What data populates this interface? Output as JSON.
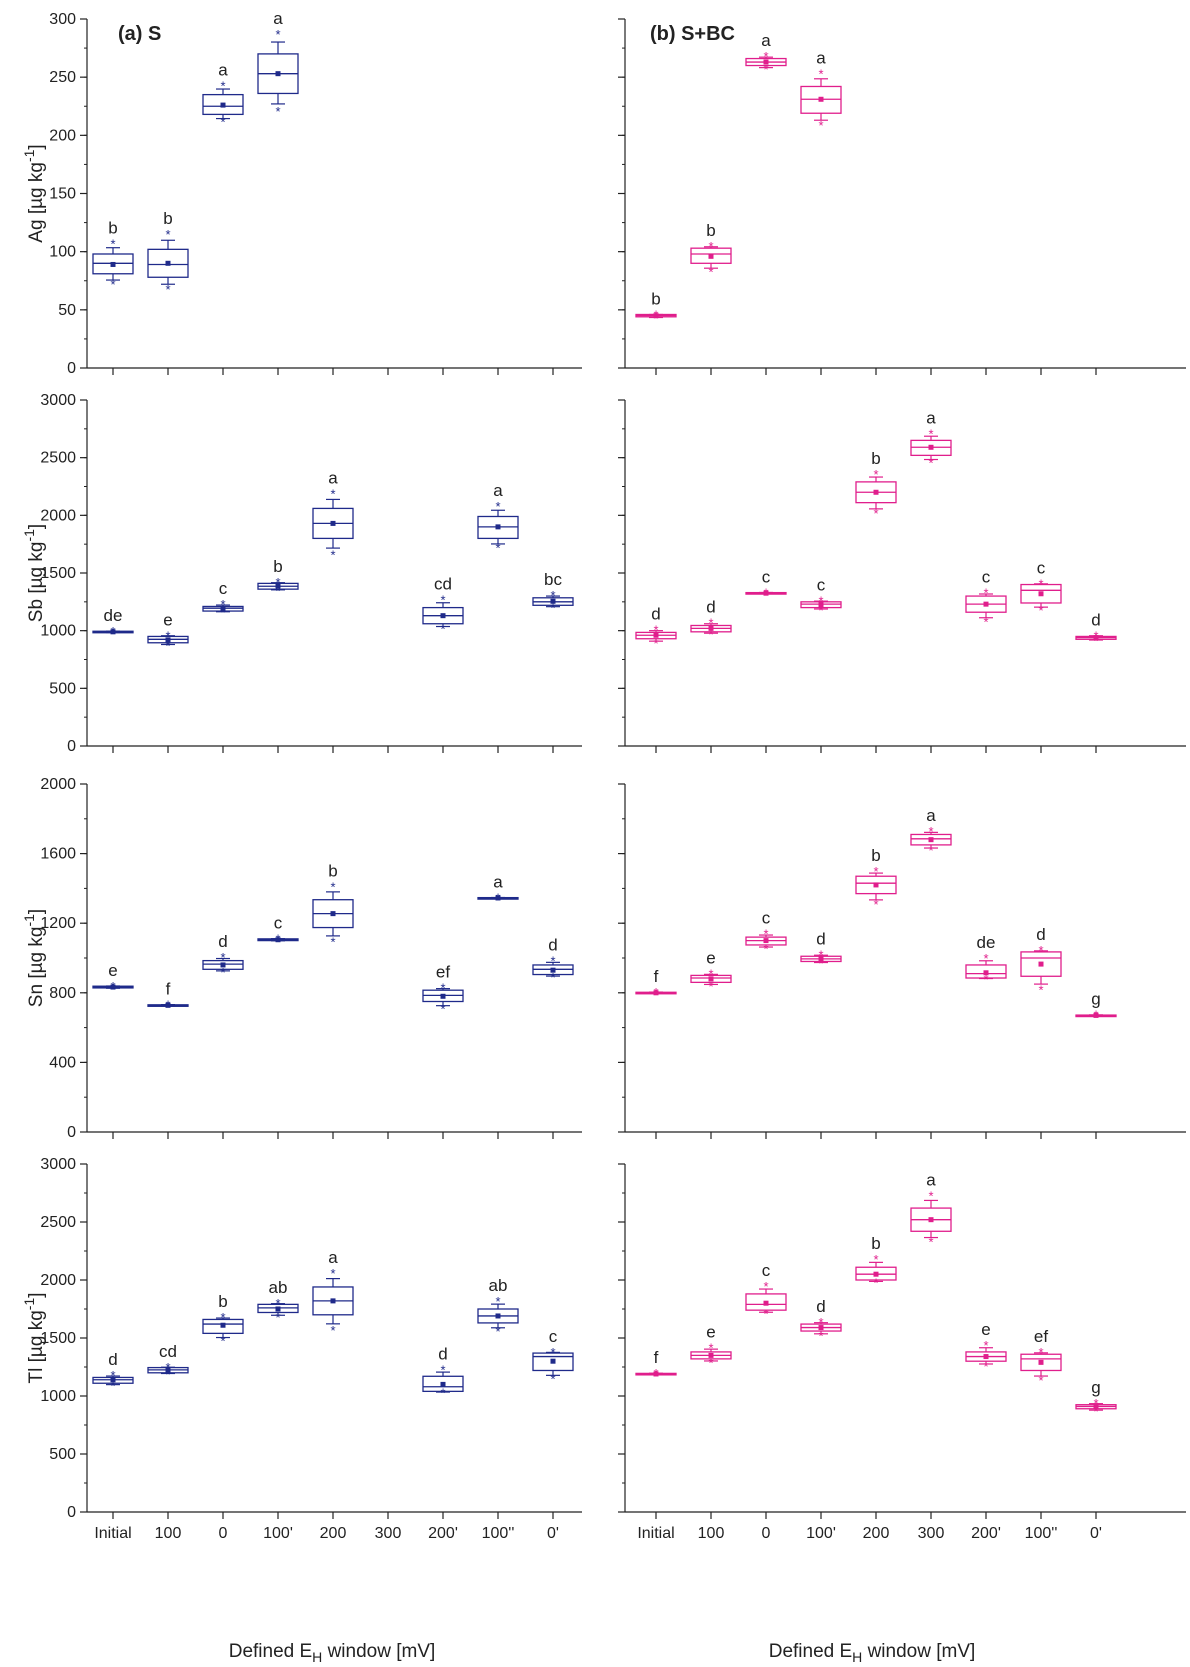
{
  "colors": {
    "series_S": "#1f2a8a",
    "series_SBC": "#e01e8c",
    "axis": "#222222"
  },
  "panel_titles": [
    "(a) S",
    "(b) S+BC"
  ],
  "x_axis_title": {
    "main": "Defined E",
    "sub": "H",
    "tail": " window [mV]"
  },
  "chart_data": [
    {
      "type": "box",
      "panel": "(a) S",
      "ylabel": {
        "element": "Ag",
        "unit": "[µg kg",
        "exp": "-1",
        "close": "]"
      },
      "ylim": [
        0,
        300
      ],
      "ymajor": [
        0,
        50,
        100,
        150,
        200,
        250,
        300
      ],
      "yminor_step": 25,
      "categories": [
        "Initial",
        "100",
        "0",
        "100'",
        "200",
        "300",
        "200'",
        "100''",
        "0'"
      ],
      "boxes": [
        {
          "x": "Initial",
          "q1": 81,
          "median": 90,
          "q3": 98,
          "mean": 89,
          "min": 72,
          "max": 107,
          "letter": "b"
        },
        {
          "x": "100",
          "q1": 78,
          "median": 89,
          "q3": 102,
          "mean": 90,
          "min": 68,
          "max": 115,
          "letter": "b"
        },
        {
          "x": "0",
          "q1": 218,
          "median": 225,
          "q3": 235,
          "mean": 226,
          "min": 212,
          "max": 243,
          "letter": "a"
        },
        {
          "x": "100'",
          "q1": 236,
          "median": 253,
          "q3": 270,
          "mean": 253,
          "min": 221,
          "max": 287,
          "letter": "a"
        }
      ]
    },
    {
      "type": "box",
      "panel": "(b) S+BC",
      "ylabel": {
        "element": "",
        "unit": "",
        "exp": "",
        "close": ""
      },
      "ylim": [
        0,
        300
      ],
      "ymajor": [
        0,
        50,
        100,
        150,
        200,
        250,
        300
      ],
      "yminor_step": 25,
      "categories": [
        "Initial",
        "100",
        "0",
        "100'",
        "200",
        "300",
        "200'",
        "100''",
        "0'"
      ],
      "boxes": [
        {
          "x": "Initial",
          "q1": 44,
          "median": 45,
          "q3": 46,
          "mean": 45,
          "min": 43,
          "max": 46,
          "letter": "b"
        },
        {
          "x": "100",
          "q1": 90,
          "median": 98,
          "q3": 103,
          "mean": 96,
          "min": 83,
          "max": 105,
          "letter": "b"
        },
        {
          "x": "0",
          "q1": 260,
          "median": 263,
          "q3": 266,
          "mean": 263,
          "min": 257,
          "max": 268,
          "letter": "a"
        },
        {
          "x": "100'",
          "q1": 219,
          "median": 231,
          "q3": 242,
          "mean": 231,
          "min": 209,
          "max": 253,
          "letter": "a"
        }
      ]
    },
    {
      "type": "box",
      "panel": "(a) S",
      "ylabel": {
        "element": "Sb",
        "unit": "[µg kg",
        "exp": "-1",
        "close": "]"
      },
      "ylim": [
        0,
        3000
      ],
      "ymajor": [
        0,
        500,
        1000,
        1500,
        2000,
        2500,
        3000
      ],
      "yminor_step": 250,
      "categories": [
        "Initial",
        "100",
        "0",
        "100'",
        "200",
        "300",
        "200'",
        "100''",
        "0'"
      ],
      "boxes": [
        {
          "x": "Initial",
          "q1": 985,
          "median": 990,
          "q3": 995,
          "mean": 990,
          "min": 983,
          "max": 997,
          "letter": "de"
        },
        {
          "x": "100",
          "q1": 895,
          "median": 925,
          "q3": 950,
          "mean": 920,
          "min": 870,
          "max": 960,
          "letter": "e"
        },
        {
          "x": "0",
          "q1": 1170,
          "median": 1195,
          "q3": 1210,
          "mean": 1190,
          "min": 1160,
          "max": 1230,
          "letter": "c"
        },
        {
          "x": "100'",
          "q1": 1360,
          "median": 1385,
          "q3": 1410,
          "mean": 1390,
          "min": 1350,
          "max": 1420,
          "letter": "b"
        },
        {
          "x": "200",
          "q1": 1800,
          "median": 1930,
          "q3": 2060,
          "mean": 1930,
          "min": 1660,
          "max": 2190,
          "letter": "a"
        },
        {
          "x": "200'",
          "q1": 1060,
          "median": 1130,
          "q3": 1200,
          "mean": 1130,
          "min": 1020,
          "max": 1270,
          "letter": "cd"
        },
        {
          "x": "100''",
          "q1": 1800,
          "median": 1900,
          "q3": 1990,
          "mean": 1900,
          "min": 1720,
          "max": 2080,
          "letter": "a"
        },
        {
          "x": "0'",
          "q1": 1220,
          "median": 1250,
          "q3": 1285,
          "mean": 1255,
          "min": 1200,
          "max": 1310,
          "letter": "bc"
        }
      ]
    },
    {
      "type": "box",
      "panel": "(b) S+BC",
      "ylabel": {
        "element": "",
        "unit": "",
        "exp": "",
        "close": ""
      },
      "ylim": [
        0,
        3000
      ],
      "ymajor": [
        0,
        500,
        1000,
        1500,
        2000,
        2500,
        3000
      ],
      "yminor_step": 250,
      "categories": [
        "Initial",
        "100",
        "0",
        "100'",
        "200",
        "300",
        "200'",
        "100''",
        "0'"
      ],
      "boxes": [
        {
          "x": "Initial",
          "q1": 930,
          "median": 960,
          "q3": 985,
          "mean": 960,
          "min": 895,
          "max": 1010,
          "letter": "d"
        },
        {
          "x": "100",
          "q1": 990,
          "median": 1020,
          "q3": 1045,
          "mean": 1020,
          "min": 970,
          "max": 1070,
          "letter": "d"
        },
        {
          "x": "0",
          "q1": 1320,
          "median": 1325,
          "q3": 1330,
          "mean": 1325,
          "min": 1318,
          "max": 1332,
          "letter": "c"
        },
        {
          "x": "100'",
          "q1": 1200,
          "median": 1230,
          "q3": 1250,
          "mean": 1225,
          "min": 1180,
          "max": 1260,
          "letter": "c"
        },
        {
          "x": "200",
          "q1": 2110,
          "median": 2200,
          "q3": 2290,
          "mean": 2200,
          "min": 2020,
          "max": 2360,
          "letter": "b"
        },
        {
          "x": "300",
          "q1": 2520,
          "median": 2590,
          "q3": 2650,
          "mean": 2590,
          "min": 2460,
          "max": 2710,
          "letter": "a"
        },
        {
          "x": "200'",
          "q1": 1160,
          "median": 1230,
          "q3": 1300,
          "mean": 1230,
          "min": 1080,
          "max": 1330,
          "letter": "c"
        },
        {
          "x": "100''",
          "q1": 1240,
          "median": 1350,
          "q3": 1400,
          "mean": 1320,
          "min": 1180,
          "max": 1410,
          "letter": "c"
        },
        {
          "x": "0'",
          "q1": 925,
          "median": 940,
          "q3": 950,
          "mean": 940,
          "min": 915,
          "max": 960,
          "letter": "d"
        }
      ]
    },
    {
      "type": "box",
      "panel": "(a) S",
      "ylabel": {
        "element": "Sn",
        "unit": "[µg kg",
        "exp": "-1",
        "close": "]"
      },
      "ylim": [
        0,
        2000
      ],
      "ymajor": [
        0,
        400,
        800,
        1200,
        1600,
        2000
      ],
      "yminor_step": 200,
      "categories": [
        "Initial",
        "100",
        "0",
        "100'",
        "200",
        "300",
        "200'",
        "100''",
        "0'"
      ],
      "boxes": [
        {
          "x": "Initial",
          "q1": 828,
          "median": 833,
          "q3": 838,
          "mean": 833,
          "min": 825,
          "max": 840,
          "letter": "e"
        },
        {
          "x": "100",
          "q1": 725,
          "median": 728,
          "q3": 731,
          "mean": 728,
          "min": 723,
          "max": 733,
          "letter": "f"
        },
        {
          "x": "0",
          "q1": 935,
          "median": 965,
          "q3": 985,
          "mean": 960,
          "min": 920,
          "max": 1005,
          "letter": "d"
        },
        {
          "x": "100'",
          "q1": 1100,
          "median": 1105,
          "q3": 1110,
          "mean": 1105,
          "min": 1098,
          "max": 1112,
          "letter": "c"
        },
        {
          "x": "200",
          "q1": 1175,
          "median": 1255,
          "q3": 1335,
          "mean": 1255,
          "min": 1095,
          "max": 1410,
          "letter": "b"
        },
        {
          "x": "200'",
          "q1": 750,
          "median": 785,
          "q3": 815,
          "mean": 780,
          "min": 710,
          "max": 830,
          "letter": "ef"
        },
        {
          "x": "100''",
          "q1": 1343,
          "median": 1345,
          "q3": 1347,
          "mean": 1345,
          "min": 1342,
          "max": 1348,
          "letter": "a"
        },
        {
          "x": "0'",
          "q1": 905,
          "median": 935,
          "q3": 960,
          "mean": 930,
          "min": 890,
          "max": 985,
          "letter": "d"
        }
      ]
    },
    {
      "type": "box",
      "panel": "(b) S+BC",
      "ylabel": {
        "element": "",
        "unit": "",
        "exp": "",
        "close": ""
      },
      "ylim": [
        0,
        2000
      ],
      "ymajor": [
        0,
        400,
        800,
        1200,
        1600,
        2000
      ],
      "yminor_step": 200,
      "categories": [
        "Initial",
        "100",
        "0",
        "100'",
        "200",
        "300",
        "200'",
        "100''",
        "0'"
      ],
      "boxes": [
        {
          "x": "Initial",
          "q1": 798,
          "median": 800,
          "q3": 803,
          "mean": 800,
          "min": 796,
          "max": 805,
          "letter": "f"
        },
        {
          "x": "100",
          "q1": 860,
          "median": 885,
          "q3": 900,
          "mean": 880,
          "min": 840,
          "max": 910,
          "letter": "e"
        },
        {
          "x": "0",
          "q1": 1075,
          "median": 1100,
          "q3": 1120,
          "mean": 1100,
          "min": 1055,
          "max": 1140,
          "letter": "c"
        },
        {
          "x": "100'",
          "q1": 980,
          "median": 995,
          "q3": 1010,
          "mean": 995,
          "min": 970,
          "max": 1020,
          "letter": "d"
        },
        {
          "x": "200",
          "q1": 1370,
          "median": 1430,
          "q3": 1470,
          "mean": 1420,
          "min": 1310,
          "max": 1500,
          "letter": "b"
        },
        {
          "x": "300",
          "q1": 1650,
          "median": 1685,
          "q3": 1710,
          "mean": 1680,
          "min": 1620,
          "max": 1730,
          "letter": "a"
        },
        {
          "x": "200'",
          "q1": 885,
          "median": 910,
          "q3": 960,
          "mean": 915,
          "min": 880,
          "max": 1000,
          "letter": "de"
        },
        {
          "x": "100''",
          "q1": 895,
          "median": 1000,
          "q3": 1035,
          "mean": 965,
          "min": 820,
          "max": 1045,
          "letter": "d"
        },
        {
          "x": "0'",
          "q1": 668,
          "median": 670,
          "q3": 672,
          "mean": 670,
          "min": 666,
          "max": 674,
          "letter": "g"
        }
      ]
    },
    {
      "type": "box",
      "panel": "(a) S",
      "ylabel": {
        "element": "Tl",
        "unit": "[µg kg",
        "exp": "-1",
        "close": "]"
      },
      "ylim": [
        0,
        3000
      ],
      "ymajor": [
        0,
        500,
        1000,
        1500,
        2000,
        2500,
        3000
      ],
      "yminor_step": 250,
      "categories": [
        "Initial",
        "100",
        "0",
        "100'",
        "200",
        "300",
        "200'",
        "100''",
        "0'"
      ],
      "boxes": [
        {
          "x": "Initial",
          "q1": 1110,
          "median": 1140,
          "q3": 1160,
          "mean": 1140,
          "min": 1090,
          "max": 1180,
          "letter": "d"
        },
        {
          "x": "100",
          "q1": 1200,
          "median": 1225,
          "q3": 1245,
          "mean": 1220,
          "min": 1190,
          "max": 1250,
          "letter": "cd"
        },
        {
          "x": "0",
          "q1": 1540,
          "median": 1620,
          "q3": 1660,
          "mean": 1610,
          "min": 1480,
          "max": 1680,
          "letter": "b"
        },
        {
          "x": "100'",
          "q1": 1720,
          "median": 1760,
          "q3": 1790,
          "mean": 1750,
          "min": 1680,
          "max": 1800,
          "letter": "ab"
        },
        {
          "x": "200",
          "q1": 1700,
          "median": 1820,
          "q3": 1940,
          "mean": 1820,
          "min": 1570,
          "max": 2060,
          "letter": "a"
        },
        {
          "x": "200'",
          "q1": 1040,
          "median": 1080,
          "q3": 1170,
          "mean": 1100,
          "min": 1030,
          "max": 1230,
          "letter": "d"
        },
        {
          "x": "100''",
          "q1": 1630,
          "median": 1690,
          "q3": 1750,
          "mean": 1690,
          "min": 1560,
          "max": 1820,
          "letter": "ab"
        },
        {
          "x": "0'",
          "q1": 1220,
          "median": 1340,
          "q3": 1370,
          "mean": 1300,
          "min": 1150,
          "max": 1380,
          "letter": "c"
        }
      ]
    },
    {
      "type": "box",
      "panel": "(b) S+BC",
      "ylabel": {
        "element": "",
        "unit": "",
        "exp": "",
        "close": ""
      },
      "ylim": [
        0,
        3000
      ],
      "ymajor": [
        0,
        500,
        1000,
        1500,
        2000,
        2500,
        3000
      ],
      "yminor_step": 250,
      "categories": [
        "Initial",
        "100",
        "0",
        "100'",
        "200",
        "300",
        "200'",
        "100''",
        "0'"
      ],
      "boxes": [
        {
          "x": "Initial",
          "q1": 1185,
          "median": 1190,
          "q3": 1195,
          "mean": 1190,
          "min": 1183,
          "max": 1197,
          "letter": "f"
        },
        {
          "x": "100",
          "q1": 1320,
          "median": 1350,
          "q3": 1380,
          "mean": 1350,
          "min": 1290,
          "max": 1420,
          "letter": "e"
        },
        {
          "x": "0",
          "q1": 1740,
          "median": 1790,
          "q3": 1880,
          "mean": 1800,
          "min": 1710,
          "max": 1950,
          "letter": "c"
        },
        {
          "x": "100'",
          "q1": 1560,
          "median": 1590,
          "q3": 1620,
          "mean": 1590,
          "min": 1520,
          "max": 1640,
          "letter": "d"
        },
        {
          "x": "200",
          "q1": 2000,
          "median": 2050,
          "q3": 2110,
          "mean": 2050,
          "min": 1980,
          "max": 2180,
          "letter": "b"
        },
        {
          "x": "300",
          "q1": 2420,
          "median": 2520,
          "q3": 2620,
          "mean": 2520,
          "min": 2330,
          "max": 2730,
          "letter": "a"
        },
        {
          "x": "200'",
          "q1": 1300,
          "median": 1340,
          "q3": 1380,
          "mean": 1340,
          "min": 1260,
          "max": 1440,
          "letter": "e"
        },
        {
          "x": "100''",
          "q1": 1220,
          "median": 1320,
          "q3": 1360,
          "mean": 1290,
          "min": 1140,
          "max": 1380,
          "letter": "ef"
        },
        {
          "x": "0'",
          "q1": 890,
          "median": 910,
          "q3": 925,
          "mean": 910,
          "min": 870,
          "max": 940,
          "letter": "g"
        }
      ]
    }
  ]
}
